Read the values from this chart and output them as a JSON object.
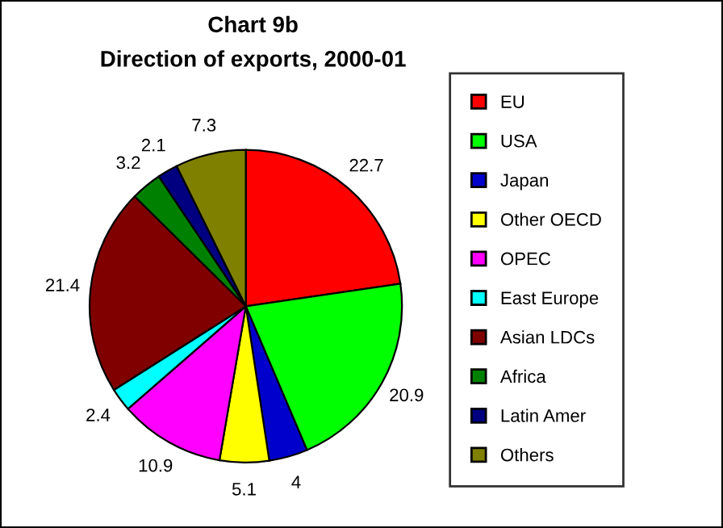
{
  "chart_data": {
    "type": "pie",
    "title": "Chart 9b",
    "subtitle": "Direction of exports, 2000-01",
    "categories": [
      "EU",
      "USA",
      "Japan",
      "Other OECD",
      "OPEC",
      "East Europe",
      "Asian LDCs",
      "Africa",
      "Latin Amer",
      "Others"
    ],
    "values": [
      22.7,
      20.9,
      4,
      5.1,
      10.9,
      2.4,
      21.4,
      3.2,
      2.1,
      7.3
    ],
    "colors": [
      "#ff0000",
      "#00ff00",
      "#0000cc",
      "#ffff00",
      "#ff00ff",
      "#00ffff",
      "#800000",
      "#008000",
      "#000080",
      "#808000"
    ],
    "data_labels": true,
    "legend": "right"
  }
}
